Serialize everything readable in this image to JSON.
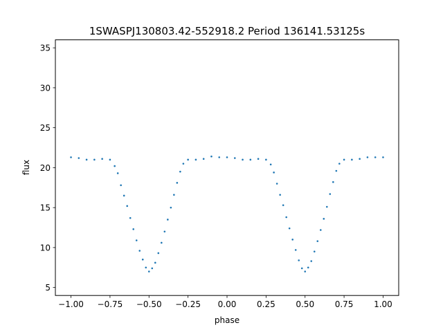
{
  "chart_data": {
    "type": "scatter",
    "title": "1SWASPJ130803.42-552918.2 Period 136141.53125s",
    "xlabel": "phase",
    "ylabel": "flux",
    "xlim": [
      -1.1,
      1.1
    ],
    "ylim": [
      4.0,
      36.0
    ],
    "x_ticks": [
      -1.0,
      -0.75,
      -0.5,
      -0.25,
      0.0,
      0.25,
      0.5,
      0.75,
      1.0
    ],
    "x_tick_labels": [
      "−1.00",
      "−0.75",
      "−0.50",
      "−0.25",
      "0.00",
      "0.25",
      "0.50",
      "0.75",
      "1.00"
    ],
    "y_ticks": [
      5,
      10,
      15,
      20,
      25,
      30,
      35
    ],
    "y_tick_labels": [
      "5",
      "10",
      "15",
      "20",
      "25",
      "30",
      "35"
    ],
    "grid": false,
    "legend": "none",
    "marker_color": "#1f77b4",
    "series": [
      {
        "x": [
          -1.0,
          -0.95,
          -0.9,
          -0.85,
          -0.8,
          -0.75,
          -0.72,
          -0.7,
          -0.68,
          -0.66,
          -0.64,
          -0.62,
          -0.6,
          -0.58,
          -0.56,
          -0.54,
          -0.52,
          -0.5,
          -0.48,
          -0.46,
          -0.44,
          -0.42,
          -0.4,
          -0.38,
          -0.36,
          -0.34,
          -0.32,
          -0.3,
          -0.28,
          -0.25,
          -0.2,
          -0.15,
          -0.1,
          -0.05,
          0.0,
          0.05,
          0.1,
          0.15,
          0.2,
          0.25,
          0.28,
          0.3,
          0.32,
          0.34,
          0.36,
          0.38,
          0.4,
          0.42,
          0.44,
          0.46,
          0.48,
          0.5,
          0.52,
          0.54,
          0.56,
          0.58,
          0.6,
          0.62,
          0.64,
          0.66,
          0.68,
          0.7,
          0.72,
          0.75,
          0.8,
          0.85,
          0.9,
          0.95,
          1.0
        ],
        "y": [
          21.3,
          21.2,
          21.0,
          21.0,
          21.1,
          21.0,
          20.2,
          19.3,
          17.8,
          16.5,
          15.2,
          13.7,
          12.3,
          10.9,
          9.6,
          8.5,
          7.5,
          7.0,
          7.4,
          8.1,
          9.3,
          10.6,
          12.0,
          13.5,
          15.0,
          16.6,
          18.1,
          19.5,
          20.5,
          21.0,
          21.0,
          21.1,
          21.4,
          21.3,
          21.3,
          21.2,
          21.0,
          21.0,
          21.1,
          21.0,
          20.4,
          19.4,
          18.0,
          16.6,
          15.3,
          13.8,
          12.4,
          11.0,
          9.7,
          8.4,
          7.4,
          7.0,
          7.5,
          8.3,
          9.5,
          10.8,
          12.2,
          13.6,
          15.1,
          16.7,
          18.2,
          19.6,
          20.5,
          21.0,
          21.0,
          21.1,
          21.3,
          21.3,
          21.3
        ]
      }
    ]
  }
}
